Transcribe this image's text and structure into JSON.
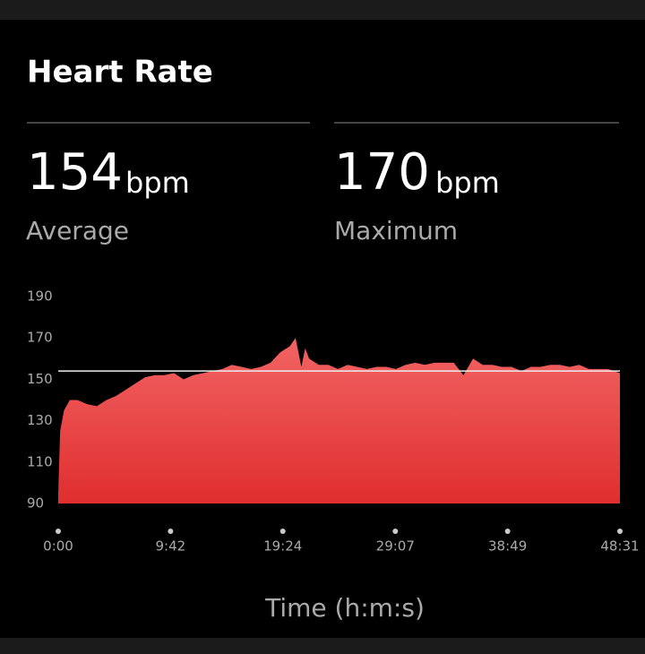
{
  "header": {
    "title": "Heart Rate"
  },
  "stats": [
    {
      "value": 154,
      "unit": "bpm",
      "label": "Average"
    },
    {
      "value": 170,
      "unit": "bpm",
      "label": "Maximum"
    }
  ],
  "chart_data": {
    "type": "area",
    "x_label": "Time (h:m:s)",
    "color_top": "#f26464",
    "color_bottom": "#e02e2e",
    "x": [
      0,
      10,
      30,
      60,
      100,
      150,
      200,
      250,
      300,
      350,
      400,
      450,
      500,
      550,
      600,
      650,
      700,
      750,
      800,
      850,
      900,
      950,
      1000,
      1050,
      1100,
      1150,
      1200,
      1230,
      1260,
      1280,
      1300,
      1350,
      1400,
      1450,
      1500,
      1550,
      1600,
      1650,
      1700,
      1750,
      1800,
      1850,
      1900,
      1950,
      2000,
      2050,
      2100,
      2150,
      2200,
      2250,
      2300,
      2350,
      2400,
      2450,
      2500,
      2550,
      2600,
      2650,
      2700,
      2750,
      2800,
      2850,
      2911
    ],
    "series": [
      {
        "name": "Heart rate",
        "values": [
          95,
          125,
          135,
          140,
          140,
          138,
          137,
          140,
          142,
          145,
          148,
          151,
          152,
          152,
          153,
          150,
          152,
          153,
          154,
          155,
          157,
          156,
          155,
          156,
          158,
          163,
          166,
          170,
          156,
          165,
          160,
          157,
          157,
          155,
          157,
          156,
          155,
          156,
          156,
          155,
          157,
          158,
          157,
          158,
          158,
          158,
          152,
          160,
          157,
          157,
          156,
          156,
          154,
          156,
          156,
          157,
          157,
          156,
          157,
          155,
          155,
          155,
          153
        ]
      }
    ],
    "xlim": [
      0,
      2911
    ],
    "xticks": [
      {
        "value": 0,
        "label": "0:00"
      },
      {
        "value": 582,
        "label": "9:42"
      },
      {
        "value": 1164,
        "label": "19:24"
      },
      {
        "value": 1747,
        "label": "29:07"
      },
      {
        "value": 2329,
        "label": "38:49"
      },
      {
        "value": 2911,
        "label": "48:31"
      }
    ],
    "ylim": [
      90,
      190
    ],
    "yticks": [
      90,
      110,
      130,
      150,
      170,
      190
    ]
  }
}
